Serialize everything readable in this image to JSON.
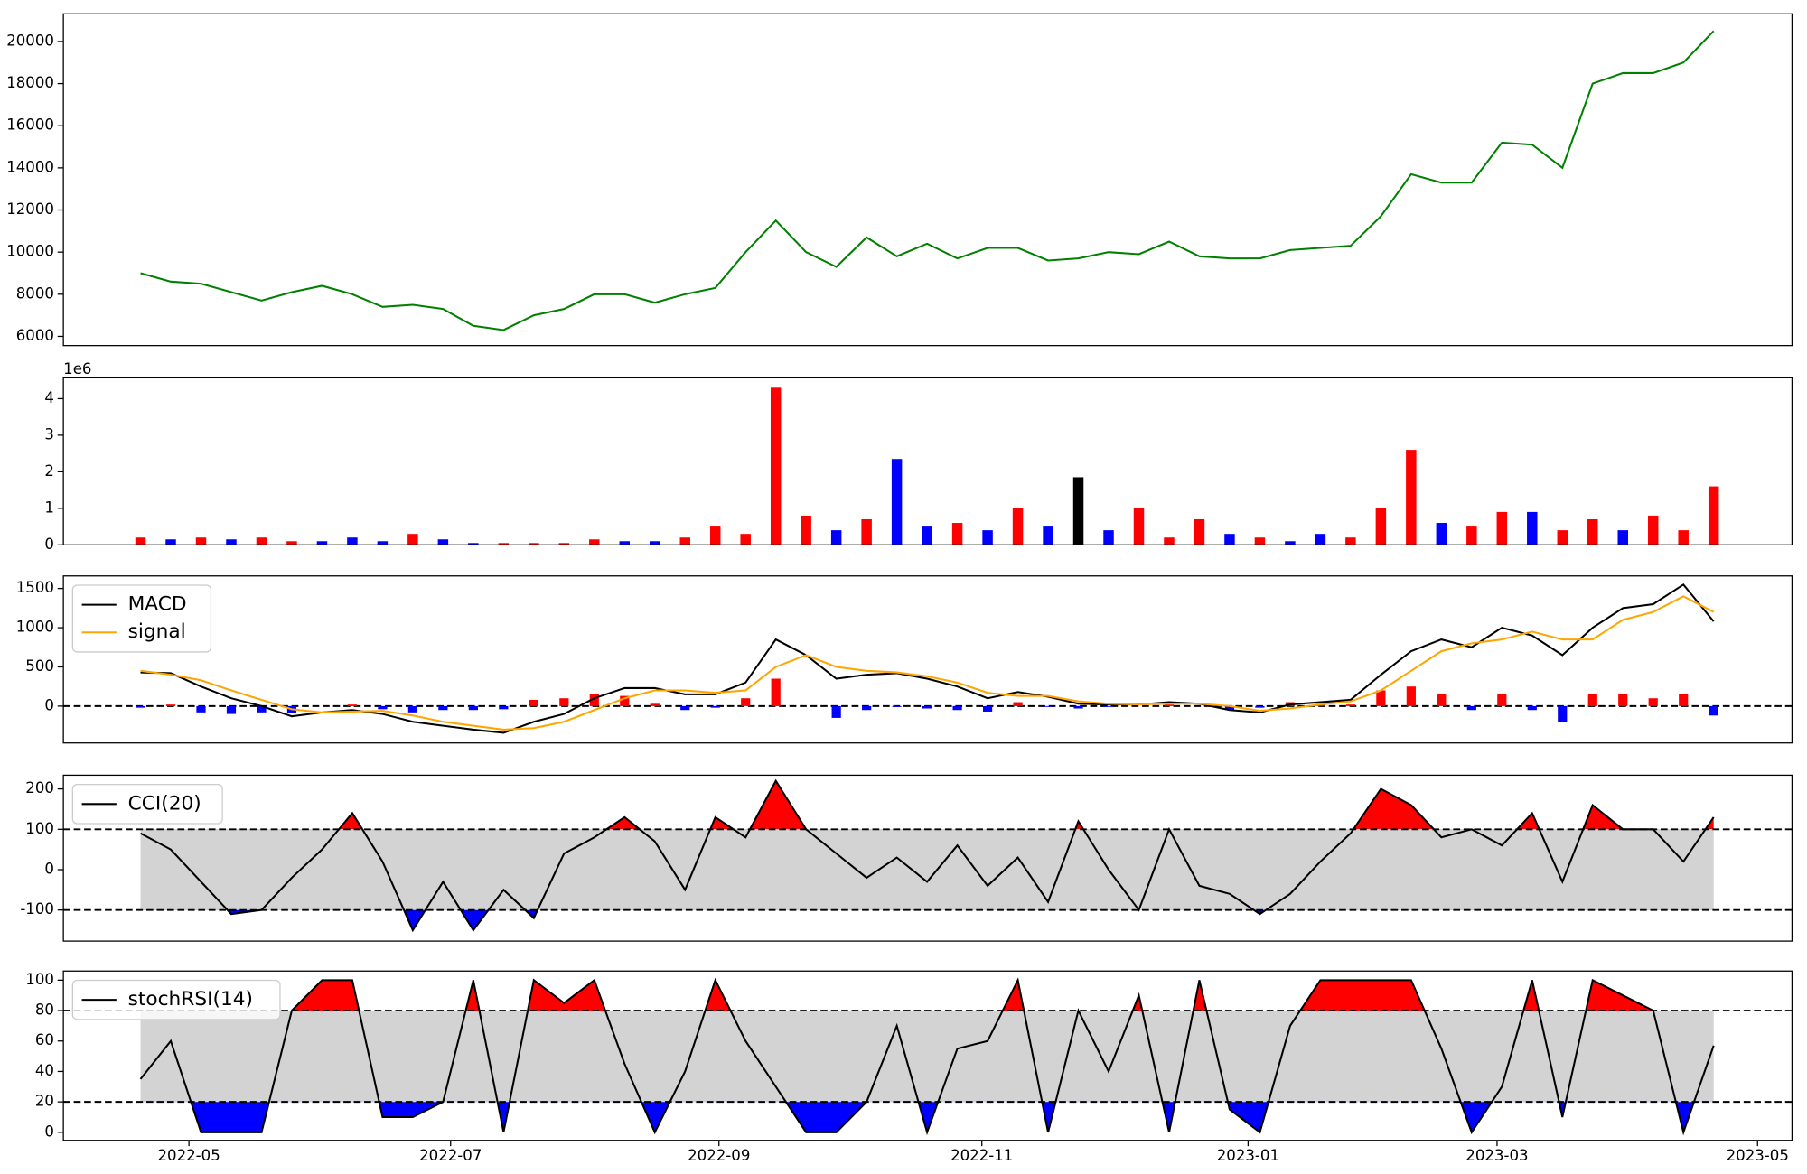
{
  "chart_data": [
    {
      "type": "line",
      "color": "green",
      "values": [
        9000,
        8600,
        8500,
        8100,
        7700,
        8100,
        8400,
        8000,
        7400,
        7500,
        7300,
        6500,
        6300,
        7000,
        7300,
        8000,
        8000,
        7600,
        8000,
        8300,
        10000,
        11500,
        10000,
        9300,
        10700,
        9800,
        10400,
        9700,
        10200,
        10200,
        9600,
        9700,
        10000,
        9900,
        10500,
        9800,
        9700,
        9700,
        10100,
        10200,
        10300,
        11700,
        13700,
        13300,
        13300,
        15200,
        15100,
        14000,
        18000,
        18500,
        18500,
        19000,
        20500
      ],
      "xlim": [
        -2.55,
        54.59
      ],
      "ylim": [
        5563,
        21313
      ],
      "yticks": [
        6000,
        8000,
        10000,
        12000,
        14000,
        16000,
        18000,
        20000
      ]
    },
    {
      "type": "bar",
      "offset_label": "1e6",
      "values": [
        0.2,
        0.15,
        0.2,
        0.15,
        0.2,
        0.1,
        0.1,
        0.2,
        0.1,
        0.3,
        0.15,
        0.05,
        0.05,
        0.05,
        0.05,
        0.15,
        0.1,
        0.1,
        0.2,
        0.5,
        0.3,
        4.3,
        0.8,
        0.4,
        0.7,
        2.35,
        0.5,
        0.6,
        0.4,
        1.0,
        0.5,
        1.85,
        0.4,
        1.0,
        0.2,
        0.7,
        0.3,
        0.2,
        0.1,
        0.3,
        0.2,
        1.0,
        2.6,
        0.6,
        0.5,
        0.9,
        0.9,
        0.4,
        0.7,
        0.4,
        0.8,
        0.4,
        1.6
      ],
      "colors": [
        "red",
        "blue",
        "red",
        "blue",
        "red",
        "red",
        "blue",
        "blue",
        "blue",
        "red",
        "blue",
        "blue",
        "red",
        "red",
        "red",
        "red",
        "blue",
        "blue",
        "red",
        "red",
        "red",
        "red",
        "red",
        "blue",
        "red",
        "blue",
        "blue",
        "red",
        "blue",
        "red",
        "blue",
        "black",
        "blue",
        "red",
        "red",
        "red",
        "blue",
        "red",
        "blue",
        "blue",
        "red",
        "red",
        "red",
        "blue",
        "red",
        "red",
        "blue",
        "red",
        "red",
        "blue",
        "red",
        "red",
        "red"
      ],
      "xlim": [
        -2.55,
        54.59
      ],
      "ylim": [
        0,
        4.57
      ],
      "yticks": [
        0,
        1,
        2,
        3,
        4
      ]
    },
    {
      "type": "macd",
      "legend": "upper left",
      "series": [
        {
          "name": "MACD",
          "color": "black",
          "values": [
            430,
            420,
            250,
            100,
            0,
            -130,
            -80,
            -50,
            -100,
            -200,
            -250,
            -300,
            -340,
            -200,
            -100,
            100,
            230,
            230,
            150,
            150,
            300,
            850,
            650,
            350,
            400,
            420,
            350,
            250,
            100,
            180,
            120,
            30,
            20,
            20,
            50,
            30,
            -50,
            -80,
            20,
            50,
            80,
            400,
            700,
            850,
            750,
            1000,
            900,
            650,
            1000,
            1250,
            1300,
            1550,
            1080
          ]
        },
        {
          "name": "signal",
          "color": "orange",
          "values": [
            450,
            400,
            330,
            200,
            80,
            -40,
            -80,
            -70,
            -60,
            -120,
            -200,
            -250,
            -300,
            -280,
            -200,
            -50,
            100,
            200,
            200,
            170,
            200,
            500,
            650,
            500,
            450,
            430,
            380,
            300,
            170,
            130,
            130,
            60,
            30,
            20,
            30,
            30,
            0,
            -60,
            -30,
            20,
            60,
            200,
            450,
            700,
            800,
            850,
            950,
            850,
            850,
            1100,
            1200,
            1400,
            1200
          ]
        }
      ],
      "histogram": {
        "pos_color": "red",
        "neg_color": "blue",
        "values": [
          -20,
          20,
          -80,
          -100,
          -80,
          -90,
          0,
          20,
          -40,
          -80,
          -50,
          -50,
          -40,
          80,
          100,
          150,
          130,
          30,
          -50,
          -20,
          100,
          350,
          0,
          -150,
          -50,
          -10,
          -30,
          -50,
          -70,
          50,
          -10,
          -30,
          -10,
          0,
          20,
          0,
          -50,
          -20,
          50,
          30,
          20,
          200,
          250,
          150,
          -50,
          150,
          -50,
          -200,
          150,
          150,
          100,
          150,
          -120
        ]
      },
      "hlines": [
        0
      ],
      "xlim": [
        -2.55,
        54.59
      ],
      "ylim": [
        -470,
        1660
      ],
      "yticks": [
        0,
        500,
        1000,
        1500
      ]
    },
    {
      "type": "band",
      "legend": "upper left",
      "series": [
        {
          "name": "CCI(20)",
          "color": "black",
          "values": [
            90,
            50,
            -30,
            -110,
            -100,
            -20,
            50,
            140,
            20,
            -150,
            -30,
            -150,
            -50,
            -120,
            40,
            80,
            130,
            70,
            -50,
            130,
            80,
            220,
            100,
            40,
            -20,
            30,
            -30,
            60,
            -40,
            30,
            -80,
            120,
            0,
            -100,
            100,
            -40,
            -60,
            -110,
            -60,
            20,
            90,
            200,
            160,
            80,
            100,
            60,
            140,
            -30,
            160,
            100,
            100,
            20,
            130
          ]
        }
      ],
      "band": [
        -100,
        100
      ],
      "band_color": "lightgray",
      "above_color": "red",
      "below_color": "blue",
      "xlim": [
        -2.55,
        54.59
      ],
      "ylim": [
        -177,
        234
      ],
      "yticks": [
        -100,
        0,
        100,
        200
      ]
    },
    {
      "type": "band",
      "legend": "upper left",
      "series": [
        {
          "name": "stochRSI(14)",
          "color": "black",
          "values": [
            35,
            60,
            0,
            0,
            0,
            80,
            100,
            100,
            10,
            10,
            20,
            100,
            0,
            100,
            85,
            100,
            45,
            0,
            40,
            100,
            60,
            30,
            0,
            0,
            20,
            70,
            0,
            55,
            60,
            100,
            0,
            80,
            40,
            90,
            0,
            100,
            15,
            0,
            70,
            100,
            100,
            100,
            100,
            55,
            0,
            30,
            100,
            10,
            100,
            90,
            80,
            0,
            57
          ]
        }
      ],
      "band": [
        20,
        80
      ],
      "band_color": "lightgray",
      "above_color": "red",
      "below_color": "blue",
      "xlim": [
        -2.55,
        54.59
      ],
      "ylim": [
        -5.3,
        106
      ],
      "yticks": [
        0,
        20,
        40,
        60,
        80,
        100
      ],
      "xticks": [
        {
          "value": 1.6,
          "label": "2022-05"
        },
        {
          "value": 10.25,
          "label": "2022-07"
        },
        {
          "value": 19.12,
          "label": "2022-09"
        },
        {
          "value": 27.81,
          "label": "2022-11"
        },
        {
          "value": 36.61,
          "label": "2023-01"
        },
        {
          "value": 44.84,
          "label": "2023-03"
        },
        {
          "value": 53.45,
          "label": "2023-05"
        }
      ]
    }
  ]
}
